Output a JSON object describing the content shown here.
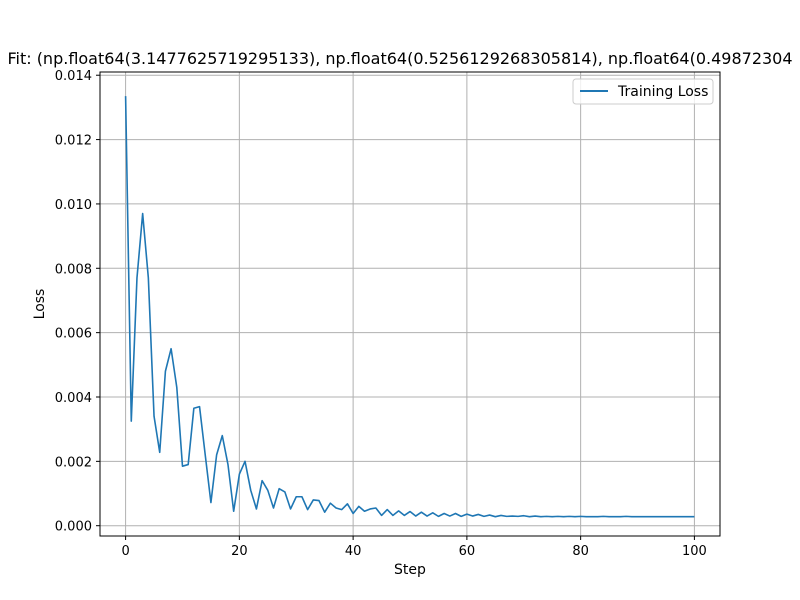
{
  "chart_data": {
    "type": "line",
    "title": "Fit: (np.float64(3.1477625719295133), np.float64(0.5256129268305814), np.float64(0.49872304",
    "xlabel": "Step",
    "ylabel": "Loss",
    "xlim": [
      -4.5,
      104.5
    ],
    "ylim": [
      -0.00032,
      0.0141
    ],
    "x_ticks": [
      0,
      20,
      40,
      60,
      80,
      100
    ],
    "y_ticks": [
      0.0,
      0.002,
      0.004,
      0.006,
      0.008,
      0.01,
      0.012,
      0.014
    ],
    "x_tick_labels": [
      "0",
      "20",
      "40",
      "60",
      "80",
      "100"
    ],
    "y_tick_labels": [
      "0.000",
      "0.002",
      "0.004",
      "0.006",
      "0.008",
      "0.010",
      "0.012",
      "0.014"
    ],
    "grid": true,
    "legend_position": "top-right",
    "series": [
      {
        "name": "Training Loss",
        "color": "#1f77b4",
        "x": [
          0,
          1,
          2,
          3,
          4,
          5,
          6,
          7,
          8,
          9,
          10,
          11,
          12,
          13,
          14,
          15,
          16,
          17,
          18,
          19,
          20,
          21,
          22,
          23,
          24,
          25,
          26,
          27,
          28,
          29,
          30,
          31,
          32,
          33,
          34,
          35,
          36,
          37,
          38,
          39,
          40,
          41,
          42,
          43,
          44,
          45,
          46,
          47,
          48,
          49,
          50,
          51,
          52,
          53,
          54,
          55,
          56,
          57,
          58,
          59,
          60,
          61,
          62,
          63,
          64,
          65,
          66,
          67,
          68,
          69,
          70,
          71,
          72,
          73,
          74,
          75,
          76,
          77,
          78,
          79,
          80,
          81,
          82,
          83,
          84,
          85,
          86,
          87,
          88,
          89,
          90,
          91,
          92,
          93,
          94,
          95,
          96,
          97,
          98,
          99,
          100
        ],
        "values": [
          0.01335,
          0.00325,
          0.0077,
          0.0097,
          0.0077,
          0.0034,
          0.00228,
          0.0048,
          0.0055,
          0.0043,
          0.00185,
          0.0019,
          0.00365,
          0.0037,
          0.0022,
          0.00072,
          0.0022,
          0.0028,
          0.0019,
          0.00045,
          0.0016,
          0.002,
          0.0011,
          0.00052,
          0.0014,
          0.0011,
          0.00055,
          0.00115,
          0.00105,
          0.00052,
          0.0009,
          0.0009,
          0.0005,
          0.0008,
          0.00078,
          0.00042,
          0.0007,
          0.00055,
          0.0005,
          0.00068,
          0.00038,
          0.0006,
          0.00045,
          0.00052,
          0.00055,
          0.00032,
          0.0005,
          0.00032,
          0.00046,
          0.00032,
          0.00044,
          0.0003,
          0.00042,
          0.0003,
          0.0004,
          0.00029,
          0.00038,
          0.0003,
          0.00038,
          0.00029,
          0.00036,
          0.0003,
          0.00035,
          0.00029,
          0.00033,
          0.00028,
          0.00032,
          0.00029,
          0.0003,
          0.00029,
          0.00031,
          0.00028,
          0.0003,
          0.00028,
          0.00029,
          0.00028,
          0.00029,
          0.00028,
          0.00029,
          0.00028,
          0.00029,
          0.00028,
          0.00028,
          0.00028,
          0.00029,
          0.00028,
          0.00028,
          0.00028,
          0.00029,
          0.00028,
          0.00028,
          0.00028,
          0.00028,
          0.00028,
          0.00028,
          0.00028,
          0.00028,
          0.00028,
          0.00028,
          0.00028,
          0.00028
        ]
      }
    ]
  }
}
